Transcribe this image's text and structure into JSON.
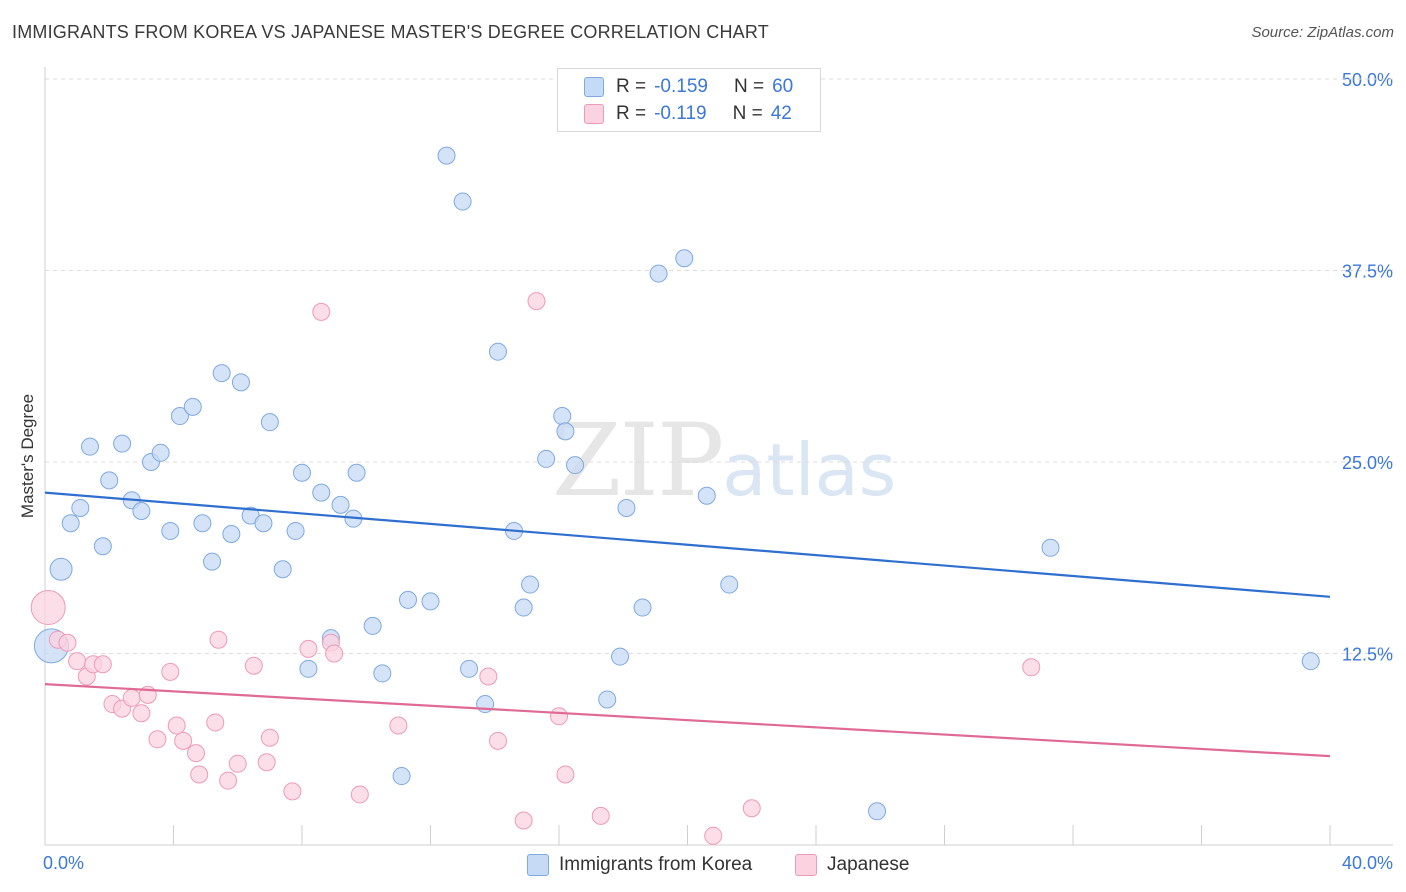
{
  "title": "IMMIGRANTS FROM KOREA VS JAPANESE MASTER'S DEGREE CORRELATION CHART",
  "source": "Source: ZipAtlas.com",
  "watermark": {
    "zip": "ZIP",
    "atlas": "atlas"
  },
  "stats": {
    "korea": {
      "r_label": "R =",
      "r_value": "-0.159",
      "n_label": "N =",
      "n_value": "60"
    },
    "japanese": {
      "r_label": "R =",
      "r_value": "-0.119",
      "n_label": "N =",
      "n_value": "42"
    }
  },
  "legend": {
    "korea": "Immigrants from Korea",
    "japanese": "Japanese"
  },
  "colors": {
    "korea_fill": "#c5daf5",
    "korea_stroke": "#7fa9e0",
    "korea_line": "#2f6fd0",
    "japanese_fill": "#fbd3e0",
    "japanese_stroke": "#ee9ab8",
    "japanese_line": "#e06a96",
    "axis_label": "#3b78d8"
  },
  "chart_data": {
    "type": "scatter",
    "title": "IMMIGRANTS FROM KOREA VS JAPANESE MASTER'S DEGREE CORRELATION CHART",
    "xlabel": "",
    "ylabel": "Master's Degree",
    "xlim": [
      0,
      40
    ],
    "ylim": [
      0,
      50
    ],
    "x_tick_labels": [
      "0.0%",
      "40.0%"
    ],
    "y_ticks": [
      12.5,
      25.0,
      37.5,
      50.0
    ],
    "y_tick_labels": [
      "12.5%",
      "25.0%",
      "37.5%",
      "50.0%"
    ],
    "grid": true,
    "legend_position": "bottom-center",
    "series": [
      {
        "name": "Immigrants from Korea",
        "trend": {
          "x": [
            0,
            40
          ],
          "y": [
            23.0,
            16.2
          ]
        },
        "points": [
          [
            0.2,
            13.0,
            3
          ],
          [
            0.5,
            18.0,
            2
          ],
          [
            0.8,
            21.0,
            1
          ],
          [
            1.1,
            22.0,
            1
          ],
          [
            1.4,
            26.0,
            1
          ],
          [
            1.8,
            19.5,
            1
          ],
          [
            2.0,
            23.8,
            1
          ],
          [
            2.4,
            26.2,
            1
          ],
          [
            2.7,
            22.5,
            1
          ],
          [
            3.0,
            21.8,
            1
          ],
          [
            3.3,
            25.0,
            1
          ],
          [
            3.6,
            25.6,
            1
          ],
          [
            3.9,
            20.5,
            1
          ],
          [
            4.2,
            28.0,
            1
          ],
          [
            4.6,
            28.6,
            1
          ],
          [
            4.9,
            21.0,
            1
          ],
          [
            5.2,
            18.5,
            1
          ],
          [
            5.5,
            30.8,
            1
          ],
          [
            5.8,
            20.3,
            1
          ],
          [
            6.1,
            30.2,
            1
          ],
          [
            6.4,
            21.5,
            1
          ],
          [
            6.8,
            21.0,
            1
          ],
          [
            7.0,
            27.6,
            1
          ],
          [
            7.4,
            18.0,
            1
          ],
          [
            7.8,
            20.5,
            1
          ],
          [
            8.0,
            24.3,
            1
          ],
          [
            8.2,
            11.5,
            1
          ],
          [
            8.6,
            23.0,
            1
          ],
          [
            8.9,
            13.5,
            1
          ],
          [
            9.2,
            22.2,
            1
          ],
          [
            9.6,
            21.3,
            1
          ],
          [
            9.7,
            24.3,
            1
          ],
          [
            10.2,
            14.3,
            1
          ],
          [
            10.5,
            11.2,
            1
          ],
          [
            11.1,
            4.5,
            1
          ],
          [
            11.3,
            16.0,
            1
          ],
          [
            12.0,
            15.9,
            1
          ],
          [
            12.5,
            45.0,
            1
          ],
          [
            13.0,
            42.0,
            1
          ],
          [
            13.2,
            11.5,
            1
          ],
          [
            13.7,
            9.2,
            1
          ],
          [
            14.1,
            32.2,
            1
          ],
          [
            14.6,
            20.5,
            1
          ],
          [
            14.9,
            15.5,
            1
          ],
          [
            15.1,
            17.0,
            1
          ],
          [
            15.6,
            25.2,
            1
          ],
          [
            16.1,
            28.0,
            1
          ],
          [
            16.2,
            27.0,
            1
          ],
          [
            16.5,
            24.8,
            1
          ],
          [
            17.5,
            9.5,
            1
          ],
          [
            17.9,
            12.3,
            1
          ],
          [
            18.1,
            22.0,
            1
          ],
          [
            18.6,
            15.5,
            1
          ],
          [
            19.1,
            37.3,
            1
          ],
          [
            19.9,
            38.3,
            1
          ],
          [
            20.6,
            22.8,
            1
          ],
          [
            21.3,
            17.0,
            1
          ],
          [
            25.9,
            2.2,
            1
          ],
          [
            31.3,
            19.4,
            1
          ],
          [
            39.4,
            12.0,
            1
          ]
        ]
      },
      {
        "name": "Japanese",
        "trend": {
          "x": [
            0,
            40
          ],
          "y": [
            10.5,
            5.8
          ]
        },
        "points": [
          [
            0.1,
            15.5,
            3
          ],
          [
            0.4,
            13.4,
            1
          ],
          [
            0.7,
            13.2,
            1
          ],
          [
            1.0,
            12.0,
            1
          ],
          [
            1.3,
            11.0,
            1
          ],
          [
            1.5,
            11.8,
            1
          ],
          [
            1.8,
            11.8,
            1
          ],
          [
            2.1,
            9.2,
            1
          ],
          [
            2.4,
            8.9,
            1
          ],
          [
            2.7,
            9.6,
            1
          ],
          [
            3.0,
            8.6,
            1
          ],
          [
            3.2,
            9.8,
            1
          ],
          [
            3.5,
            6.9,
            1
          ],
          [
            3.9,
            11.3,
            1
          ],
          [
            4.1,
            7.8,
            1
          ],
          [
            4.3,
            6.8,
            1
          ],
          [
            4.7,
            6.0,
            1
          ],
          [
            4.8,
            4.6,
            1
          ],
          [
            5.3,
            8.0,
            1
          ],
          [
            5.4,
            13.4,
            1
          ],
          [
            5.7,
            4.2,
            1
          ],
          [
            6.0,
            5.3,
            1
          ],
          [
            6.5,
            11.7,
            1
          ],
          [
            6.9,
            5.4,
            1
          ],
          [
            7.0,
            7.0,
            1
          ],
          [
            7.7,
            3.5,
            1
          ],
          [
            8.2,
            12.8,
            1
          ],
          [
            8.6,
            34.8,
            1
          ],
          [
            8.9,
            13.2,
            1
          ],
          [
            9.0,
            12.5,
            1
          ],
          [
            9.8,
            3.3,
            1
          ],
          [
            11.0,
            7.8,
            1
          ],
          [
            13.8,
            11.0,
            1
          ],
          [
            14.1,
            6.8,
            1
          ],
          [
            14.9,
            1.6,
            1
          ],
          [
            15.3,
            35.5,
            1
          ],
          [
            16.0,
            8.4,
            1
          ],
          [
            16.2,
            4.6,
            1
          ],
          [
            17.3,
            1.9,
            1
          ],
          [
            20.8,
            0.6,
            1
          ],
          [
            22.0,
            2.4,
            1
          ],
          [
            30.7,
            11.6,
            1
          ]
        ]
      }
    ]
  }
}
